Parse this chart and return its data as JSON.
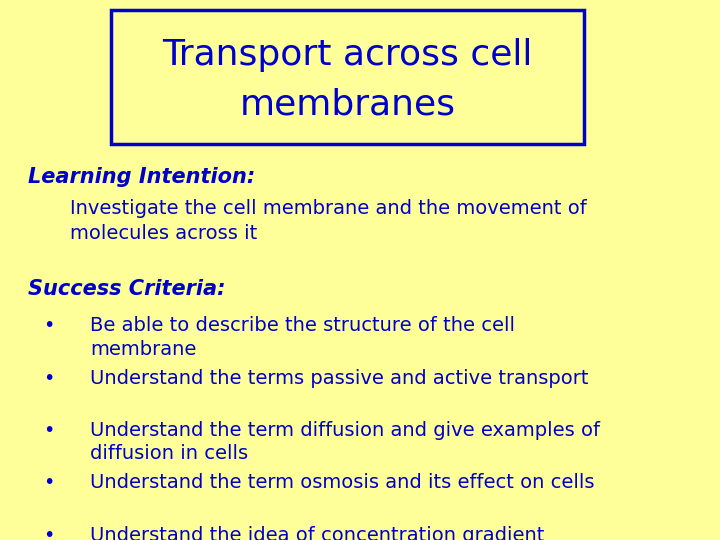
{
  "background_color": "#FFFF99",
  "title_text_line1": "Transport across cell",
  "title_text_line2": "membranes",
  "title_color": "#0000CC",
  "title_box_color": "#0000CC",
  "title_fontsize": 26,
  "learning_intention_label": "Learning Intention:",
  "learning_intention_text": "Investigate the cell membrane and the movement of\nmolecules across it",
  "section_fontsize": 15,
  "body_fontsize": 14,
  "success_criteria_label": "Success Criteria:",
  "bullet_points": [
    "Be able to describe the structure of the cell\nmembrane",
    "Understand the terms passive and active transport",
    "Understand the term diffusion and give examples of\ndiffusion in cells",
    "Understand the term osmosis and its effect on cells",
    "Understand the idea of concentration gradient"
  ],
  "text_color": "#0000CC",
  "font_family": "Comic Sans MS"
}
